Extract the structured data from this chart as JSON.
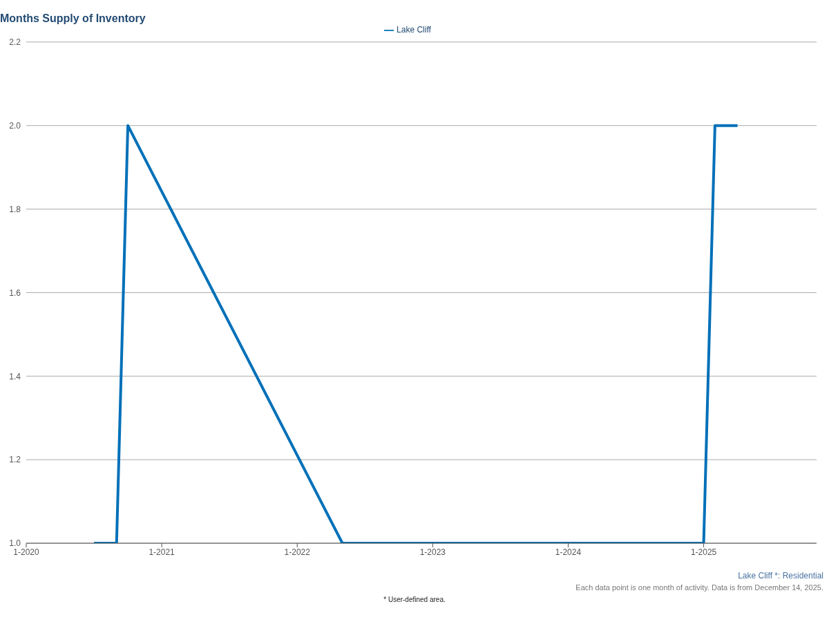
{
  "chart_data": {
    "type": "line",
    "title": "Months Supply of Inventory",
    "x": [
      "2020-07",
      "2020-09",
      "2020-10",
      "2022-05",
      "2025-01",
      "2025-02",
      "2025-04"
    ],
    "series": [
      {
        "name": "Lake Cliff",
        "color": "#0070b8",
        "values": [
          1.0,
          1.0,
          2.0,
          1.0,
          1.0,
          2.0,
          2.0
        ]
      }
    ],
    "xlim": [
      "2020-01",
      "2025-11"
    ],
    "xticks": [
      {
        "value": "2020-01",
        "label": "1-2020"
      },
      {
        "value": "2021-01",
        "label": "1-2021"
      },
      {
        "value": "2022-01",
        "label": "1-2022"
      },
      {
        "value": "2023-01",
        "label": "1-2023"
      },
      {
        "value": "2024-01",
        "label": "1-2024"
      },
      {
        "value": "2025-01",
        "label": "1-2025"
      }
    ],
    "ylim": [
      1.0,
      2.2
    ],
    "yticks": [
      {
        "value": 1.0,
        "label": "1.0"
      },
      {
        "value": 1.2,
        "label": "1.2"
      },
      {
        "value": 1.4,
        "label": "1.4"
      },
      {
        "value": 1.6,
        "label": "1.6"
      },
      {
        "value": 1.8,
        "label": "1.8"
      },
      {
        "value": 2.0,
        "label": "2.0"
      },
      {
        "value": 2.2,
        "label": "2.2"
      }
    ],
    "grid": "y",
    "legend": "top",
    "marker": "none",
    "line_style": "solid",
    "annotations": [
      "Lake Cliff *: Residential",
      "Each data point is one month of activity. Data is from December 14, 2025.",
      "* User-defined area."
    ]
  }
}
